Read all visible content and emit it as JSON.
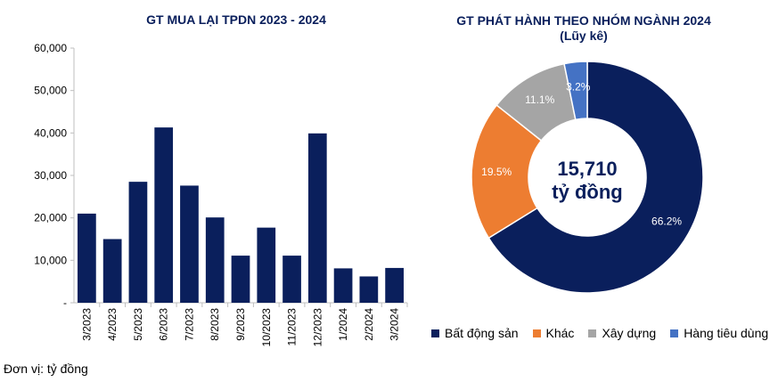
{
  "unit_note": "Đơn vị: tỷ đồng",
  "chart_data": [
    {
      "type": "bar",
      "title": "GT MUA LẠI TPDN 2023 - 2024",
      "categories": [
        "3/2023",
        "4/2023",
        "5/2023",
        "6/2023",
        "7/2023",
        "8/2023",
        "9/2023",
        "10/2023",
        "11/2023",
        "12/2023",
        "1/2024",
        "2/2024",
        "3/2024"
      ],
      "values": [
        21000,
        15000,
        28500,
        41300,
        27600,
        20100,
        11100,
        17700,
        11100,
        39900,
        8100,
        6200,
        8200
      ],
      "ylim": [
        0,
        60000
      ],
      "yticks": [
        0,
        10000,
        20000,
        30000,
        40000,
        50000,
        60000
      ],
      "ytick_labels": [
        "-",
        "10,000",
        "20,000",
        "30,000",
        "40,000",
        "50,000",
        "60,000"
      ],
      "color": "#0a1f5c",
      "grid": false
    },
    {
      "type": "pie",
      "title": "GT PHÁT HÀNH THEO NHÓM NGÀNH 2024",
      "subtitle": "(Lũy kê)",
      "center_value": "15,710",
      "center_unit": "tỷ đồng",
      "legend_position": "bottom",
      "slices": [
        {
          "name": "Bất động sản",
          "value": 66.2,
          "label": "66.2%",
          "color": "#0a1f5c"
        },
        {
          "name": "Khác",
          "value": 19.5,
          "label": "19.5%",
          "color": "#ed7d31"
        },
        {
          "name": "Xây dựng",
          "value": 11.1,
          "label": "11.1%",
          "color": "#a5a5a5"
        },
        {
          "name": "Hàng tiêu dùng",
          "value": 3.2,
          "label": "3.2%",
          "color": "#4472c4"
        }
      ]
    }
  ]
}
